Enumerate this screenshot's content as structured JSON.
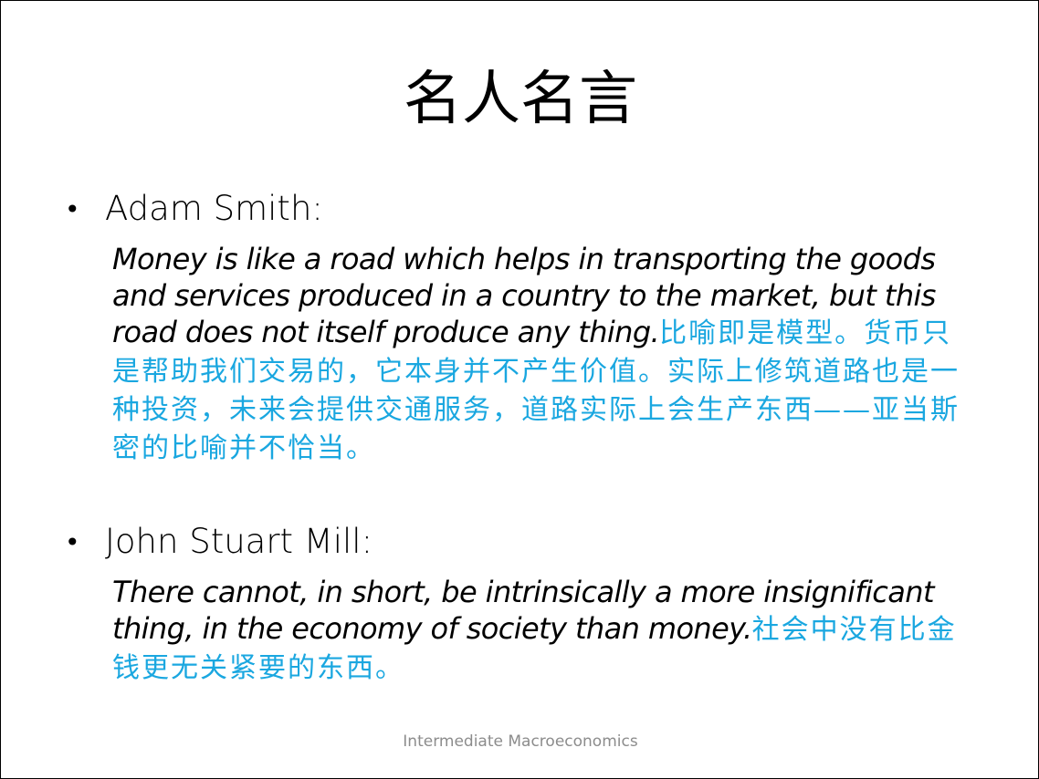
{
  "slide": {
    "title": "名人名言",
    "quotes": [
      {
        "bullet": "•",
        "speaker": "Adam Smith:",
        "text_en": "Money is like a road which helps in transporting the goods and services produced in a country to the market, but this road does not itself produce any thing.",
        "text_cn": "比喻即是模型。货币只是帮助我们交易的，它本身并不产生价值。实际上修筑道路也是一种投资，未来会提供交通服务，道路实际上会生产东西——亚当斯密的比喻并不恰当。"
      },
      {
        "bullet": "•",
        "speaker": "John Stuart Mill:",
        "text_en": "There cannot, in short, be intrinsically a more insignificant thing, in the economy of society than money.",
        "text_cn": "社会中没有比金钱更无关紧要的东西。"
      }
    ],
    "footer": "Intermediate Macroeconomics"
  },
  "colors": {
    "title": "#000000",
    "body_text": "#000000",
    "chinese_annotation": "#1aa7e0",
    "footer": "#8c8c8c",
    "border": "#000000",
    "background": "#ffffff"
  }
}
